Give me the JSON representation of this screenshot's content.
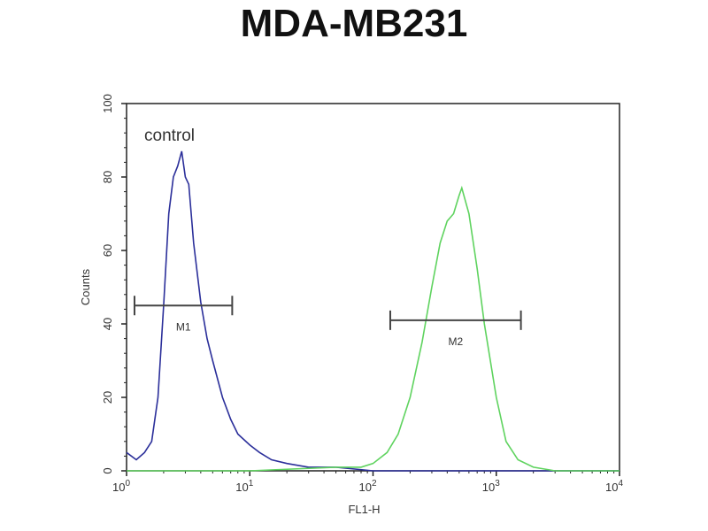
{
  "chart_data": {
    "type": "line",
    "title": "MDA-MB231",
    "xlabel": "FL1-H",
    "ylabel": "Counts",
    "xscale": "log",
    "xlim": [
      1,
      10000
    ],
    "ylim": [
      0,
      100
    ],
    "x_ticks": [
      {
        "value": 1,
        "base": "10",
        "exp": "0"
      },
      {
        "value": 10,
        "base": "10",
        "exp": "1"
      },
      {
        "value": 100,
        "base": "10",
        "exp": "2"
      },
      {
        "value": 1000,
        "base": "10",
        "exp": "3"
      },
      {
        "value": 10000,
        "base": "10",
        "exp": "4"
      }
    ],
    "y_ticks": [
      0,
      20,
      40,
      60,
      80,
      100
    ],
    "grid": false,
    "series": [
      {
        "name": "control",
        "color": "#2b2f9a",
        "x": [
          1,
          1.2,
          1.4,
          1.6,
          1.8,
          2.0,
          2.2,
          2.4,
          2.6,
          2.8,
          3.0,
          3.2,
          3.5,
          4,
          4.5,
          5,
          6,
          7,
          8,
          10,
          12,
          15,
          20,
          30,
          50,
          100,
          300,
          10000
        ],
        "y": [
          5,
          3,
          5,
          8,
          20,
          45,
          70,
          80,
          83,
          87,
          80,
          78,
          62,
          46,
          36,
          30,
          20,
          14,
          10,
          7,
          5,
          3,
          2,
          1,
          1,
          0,
          0,
          0
        ]
      },
      {
        "color": "#5fd35f",
        "x": [
          1,
          10,
          50,
          80,
          100,
          130,
          160,
          200,
          250,
          300,
          350,
          400,
          450,
          500,
          525,
          600,
          700,
          800,
          1000,
          1200,
          1500,
          2000,
          3000,
          10000
        ],
        "y": [
          0,
          0,
          1,
          1,
          2,
          5,
          10,
          20,
          35,
          50,
          62,
          68,
          70,
          75,
          77,
          70,
          55,
          40,
          20,
          8,
          3,
          1,
          0,
          0
        ]
      }
    ],
    "markers": [
      {
        "label": "M1",
        "x_range": [
          1.16,
          7.2
        ],
        "y": 45
      },
      {
        "label": "M2",
        "x_range": [
          138,
          1585
        ],
        "y": 41
      }
    ],
    "annotations": [
      {
        "text": "control"
      }
    ]
  }
}
